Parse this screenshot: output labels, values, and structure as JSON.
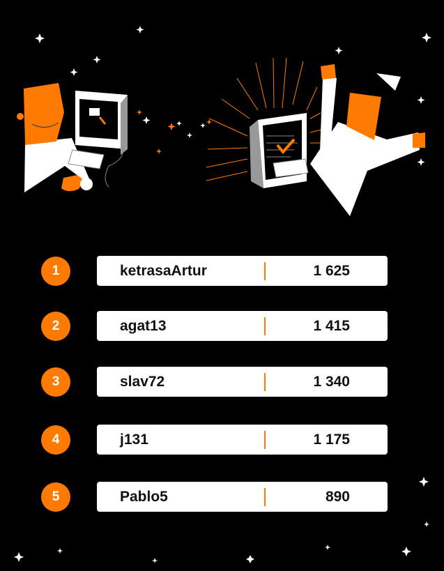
{
  "colors": {
    "accent": "#ff7a00",
    "background": "#000000",
    "card": "#ffffff"
  },
  "leaderboard": [
    {
      "rank": "1",
      "name": "ketrasaArtur",
      "score": "1 625"
    },
    {
      "rank": "2",
      "name": "agat13",
      "score": "1 415"
    },
    {
      "rank": "3",
      "name": "slav72",
      "score": "1 340"
    },
    {
      "rank": "4",
      "name": "j131",
      "score": "1 175"
    },
    {
      "rank": "5",
      "name": "Pablo5",
      "score": "890"
    }
  ]
}
